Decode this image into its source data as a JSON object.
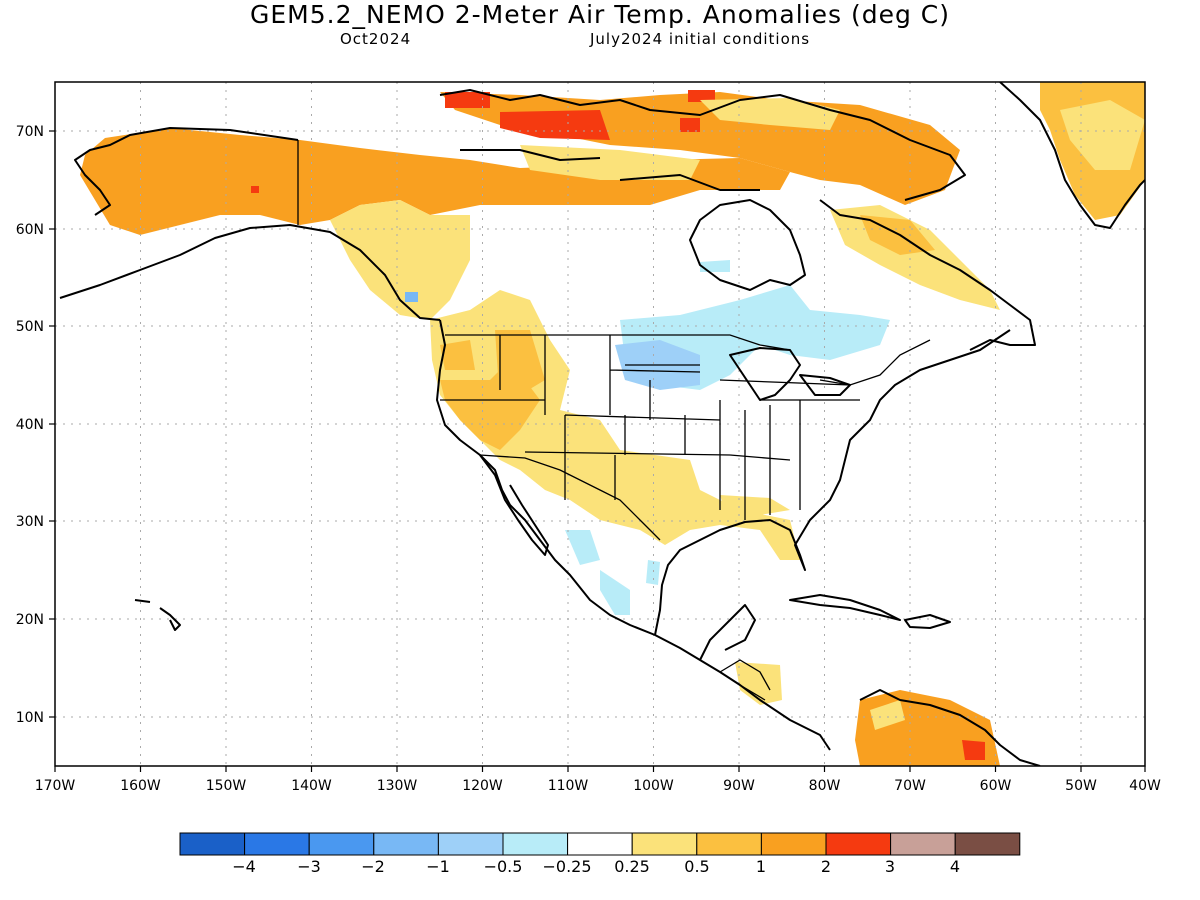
{
  "title": "GEM5.2_NEMO 2-Meter Air Temp. Anomalies (deg C)",
  "subtitle_left": "Oct2024",
  "subtitle_right": "July2024 initial conditions",
  "map": {
    "lon_labels": [
      "170W",
      "160W",
      "150W",
      "140W",
      "130W",
      "120W",
      "110W",
      "100W",
      "90W",
      "80W",
      "70W",
      "60W",
      "50W",
      "40W"
    ],
    "lat_labels": [
      "10N",
      "20N",
      "30N",
      "40N",
      "50N",
      "60N",
      "70N"
    ]
  },
  "legend": {
    "colors": [
      "#1a60c8",
      "#2a78e6",
      "#4a98f0",
      "#78b8f5",
      "#9ed0f8",
      "#b8ecf8",
      "#ffffff",
      "#fbe27a",
      "#fbc040",
      "#f9a020",
      "#f53a10",
      "#c8a098",
      "#7a4e44"
    ],
    "labels": [
      "−4",
      "−3",
      "−2",
      "−1",
      "−0.5",
      "−0.25",
      "0.25",
      "0.5",
      "1",
      "2",
      "3",
      "4"
    ]
  },
  "colors": {
    "warm_light": "#fbe27a",
    "warm_mid": "#fbc040",
    "warm_strong": "#f9a020",
    "hot": "#f53a10",
    "cool_light": "#b8ecf8",
    "cool_mid": "#9ed0f8",
    "cool_strong": "#78b8f5"
  }
}
